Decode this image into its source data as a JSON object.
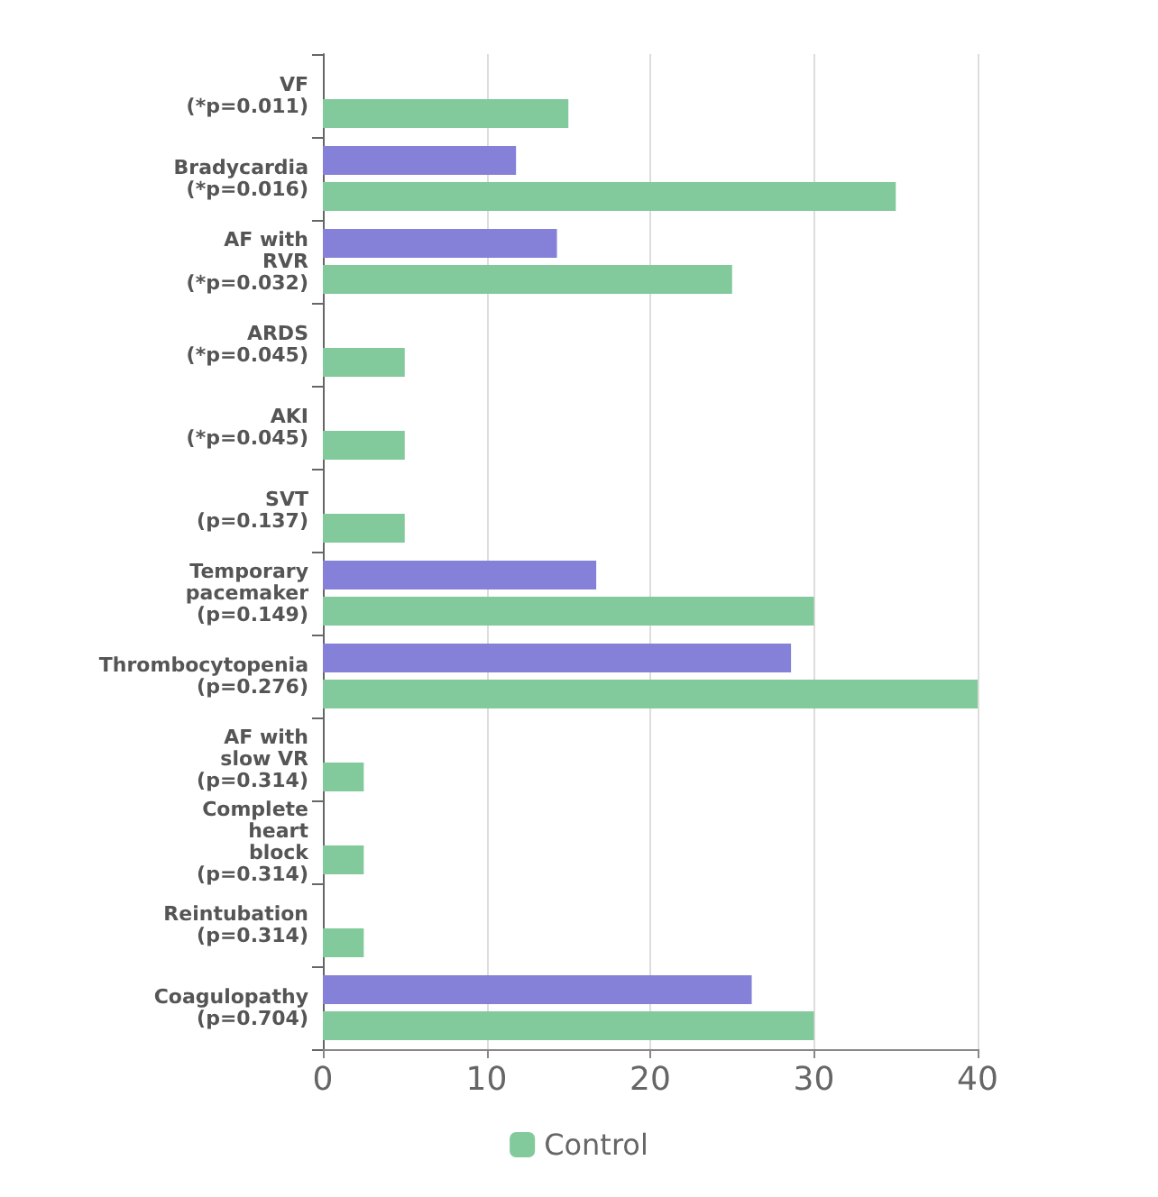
{
  "chart_data": {
    "type": "bar",
    "orientation": "horizontal",
    "categories": [
      "VF\n(*p=0.011)",
      "Bradycardia\n(*p=0.016)",
      "AF with\nRVR\n(*p=0.032)",
      "ARDS\n(*p=0.045)",
      "AKI\n(*p=0.045)",
      "SVT\n(p=0.137)",
      "Temporary\npacemaker\n(p=0.149)",
      "Thrombocytopenia\n(p=0.276)",
      "AF with\nslow VR\n(p=0.314)",
      "Complete\nheart\nblock\n(p=0.314)",
      "Reintubation\n(p=0.314)",
      "Coagulopathy\n(p=0.704)"
    ],
    "series": [
      {
        "color": "#8580d8",
        "values": [
          0,
          11.8,
          14.3,
          0,
          0,
          0,
          16.7,
          28.6,
          0,
          0,
          0,
          26.2
        ]
      },
      {
        "name": "Control",
        "color": "#82c99c",
        "values": [
          15,
          35,
          25,
          5,
          5,
          5,
          30,
          40,
          2.5,
          2.5,
          2.5,
          30
        ]
      }
    ],
    "xlim": [
      0,
      40
    ],
    "xticks": [
      0,
      10,
      20,
      30,
      40
    ],
    "grid": "x",
    "legend": "bottom"
  }
}
